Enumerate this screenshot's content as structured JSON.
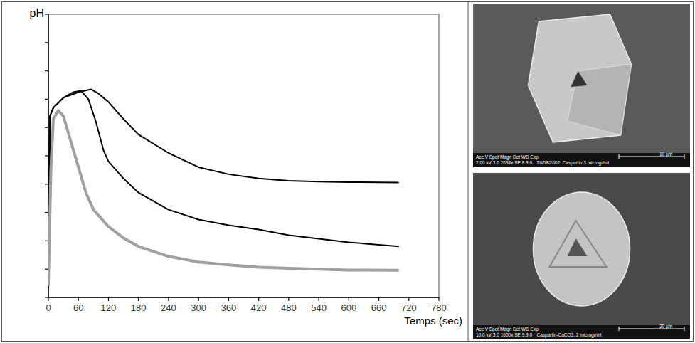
{
  "chart_data": {
    "type": "line",
    "y_label": "pH",
    "x_label": "Temps (sec)",
    "xlim": [
      0,
      780
    ],
    "xticks": [
      0,
      60,
      120,
      180,
      240,
      300,
      360,
      420,
      480,
      540,
      600,
      660,
      720,
      780
    ],
    "ylim": [
      0,
      10
    ],
    "yticks": [
      0,
      1,
      2,
      3,
      4,
      5,
      6,
      7,
      8,
      9,
      10
    ],
    "tick_labels": "x",
    "grid": false,
    "series": [
      {
        "color": "#000000",
        "line_style": "solid",
        "x": [
          0,
          3,
          10,
          30,
          60,
          85,
          100,
          120,
          150,
          180,
          240,
          300,
          360,
          420,
          480,
          540,
          600,
          700
        ],
        "values": [
          0.3,
          6.4,
          6.7,
          7.05,
          7.25,
          7.35,
          7.2,
          6.9,
          6.3,
          5.75,
          5.1,
          4.6,
          4.35,
          4.2,
          4.12,
          4.09,
          4.07,
          4.06
        ]
      },
      {
        "color": "#000000",
        "line_style": "solid",
        "x": [
          0,
          3,
          10,
          30,
          50,
          65,
          80,
          95,
          110,
          120,
          150,
          180,
          240,
          300,
          360,
          420,
          480,
          540,
          600,
          700
        ],
        "values": [
          0.3,
          6.4,
          6.7,
          7.05,
          7.25,
          7.3,
          7.0,
          6.2,
          5.2,
          4.8,
          4.2,
          3.7,
          3.1,
          2.75,
          2.55,
          2.4,
          2.2,
          2.07,
          1.95,
          1.8
        ]
      },
      {
        "color": "#a0a0a0",
        "line_style": "solid",
        "x": [
          0,
          5,
          10,
          20,
          30,
          45,
          60,
          75,
          90,
          120,
          150,
          180,
          240,
          300,
          360,
          420,
          480,
          540,
          600,
          700
        ],
        "values": [
          0.4,
          4.5,
          6.3,
          6.6,
          6.4,
          5.5,
          4.6,
          3.7,
          3.1,
          2.5,
          2.1,
          1.8,
          1.45,
          1.25,
          1.15,
          1.07,
          1.03,
          1.0,
          0.97,
          0.96
        ]
      }
    ]
  },
  "micrographs": [
    {
      "header": "Acc.V  Spot  Magn    Det  WD  Exp",
      "values": "2.00 kV 3.0  2634x   SE   8.3  0",
      "caption": "26/08/2002: Caspartin 3 microgr/ml",
      "scale_bar": "10 µm"
    },
    {
      "header": "Acc.V  Spot  Magn    Det  WD  Exp",
      "values": "10.0 kV 3.0  1600x   SE   9.9  0",
      "caption": "Caspartin-CaCO3: 2 microgr/ml",
      "scale_bar": "20 µm"
    }
  ]
}
